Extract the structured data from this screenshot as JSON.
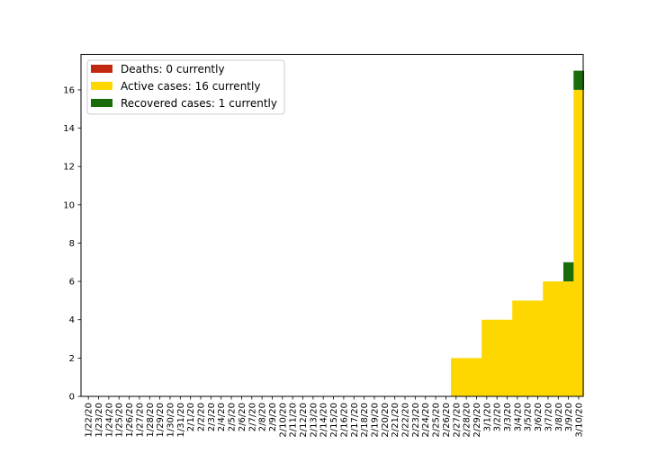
{
  "chart_data": {
    "type": "bar",
    "stacked": true,
    "categories": [
      "1/22/20",
      "1/23/20",
      "1/24/20",
      "1/25/20",
      "1/26/20",
      "1/27/20",
      "1/28/20",
      "1/29/20",
      "1/30/20",
      "1/31/20",
      "2/1/20",
      "2/2/20",
      "2/3/20",
      "2/4/20",
      "2/5/20",
      "2/6/20",
      "2/7/20",
      "2/8/20",
      "2/9/20",
      "2/10/20",
      "2/11/20",
      "2/12/20",
      "2/13/20",
      "2/14/20",
      "2/15/20",
      "2/16/20",
      "2/17/20",
      "2/18/20",
      "2/19/20",
      "2/20/20",
      "2/21/20",
      "2/22/20",
      "2/23/20",
      "2/24/20",
      "2/25/20",
      "2/26/20",
      "2/27/20",
      "2/28/20",
      "2/29/20",
      "3/1/20",
      "3/2/20",
      "3/3/20",
      "3/4/20",
      "3/5/20",
      "3/6/20",
      "3/7/20",
      "3/8/20",
      "3/9/20",
      "3/10/20"
    ],
    "series": [
      {
        "name": "Deaths: 0 currently",
        "color": "#c0280f",
        "values": [
          0,
          0,
          0,
          0,
          0,
          0,
          0,
          0,
          0,
          0,
          0,
          0,
          0,
          0,
          0,
          0,
          0,
          0,
          0,
          0,
          0,
          0,
          0,
          0,
          0,
          0,
          0,
          0,
          0,
          0,
          0,
          0,
          0,
          0,
          0,
          0,
          0,
          0,
          0,
          0,
          0,
          0,
          0,
          0,
          0,
          0,
          0,
          0,
          0
        ]
      },
      {
        "name": "Active cases: 16 currently",
        "color": "#ffd700",
        "values": [
          0,
          0,
          0,
          0,
          0,
          0,
          0,
          0,
          0,
          0,
          0,
          0,
          0,
          0,
          0,
          0,
          0,
          0,
          0,
          0,
          0,
          0,
          0,
          0,
          0,
          0,
          0,
          0,
          0,
          0,
          0,
          0,
          0,
          0,
          0,
          0,
          2,
          2,
          2,
          4,
          4,
          4,
          5,
          5,
          5,
          6,
          6,
          6,
          16
        ]
      },
      {
        "name": "Recovered cases: 1 currently",
        "color": "#1a6b0a",
        "values": [
          0,
          0,
          0,
          0,
          0,
          0,
          0,
          0,
          0,
          0,
          0,
          0,
          0,
          0,
          0,
          0,
          0,
          0,
          0,
          0,
          0,
          0,
          0,
          0,
          0,
          0,
          0,
          0,
          0,
          0,
          0,
          0,
          0,
          0,
          0,
          0,
          0,
          0,
          0,
          0,
          0,
          0,
          0,
          0,
          0,
          0,
          0,
          1,
          1
        ]
      }
    ],
    "yticks": [
      0,
      2,
      4,
      6,
      8,
      10,
      12,
      14,
      16
    ],
    "ylim": [
      0,
      17.85
    ],
    "legend_position": "top-left",
    "grid": false,
    "title": "",
    "xlabel": "",
    "ylabel": ""
  }
}
